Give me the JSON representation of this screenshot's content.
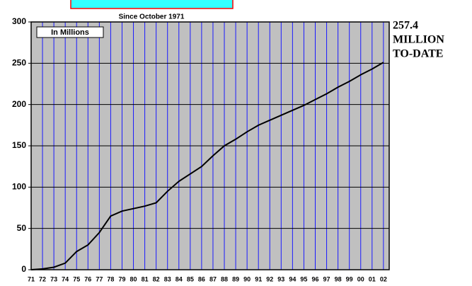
{
  "chart_data": {
    "type": "line",
    "subtitle": "Since October 1971",
    "annotation_box": "In Millions",
    "annotation": [
      "257.4",
      "MILLION",
      "TO-DATE"
    ],
    "categories": [
      "71",
      "72",
      "73",
      "74",
      "75",
      "76",
      "77",
      "78",
      "79",
      "80",
      "81",
      "82",
      "83",
      "84",
      "85",
      "86",
      "87",
      "88",
      "89",
      "90",
      "91",
      "92",
      "93",
      "94",
      "95",
      "96",
      "97",
      "98",
      "99",
      "00",
      "01",
      "02"
    ],
    "series": [
      {
        "color": "#000000",
        "values": [
          0,
          1,
          3,
          8,
          22,
          30,
          45,
          65,
          71,
          74,
          77,
          81,
          95,
          107,
          116,
          125,
          138,
          150,
          158,
          167,
          175,
          181,
          187,
          193,
          199,
          206,
          213,
          221,
          228,
          236,
          243,
          251
        ]
      }
    ],
    "ylim": [
      0,
      300
    ],
    "yticks": [
      0,
      50,
      100,
      150,
      200,
      250,
      300
    ],
    "grid": true,
    "background": "#c0c0c0",
    "vgrid_color": "#1a1aff"
  }
}
